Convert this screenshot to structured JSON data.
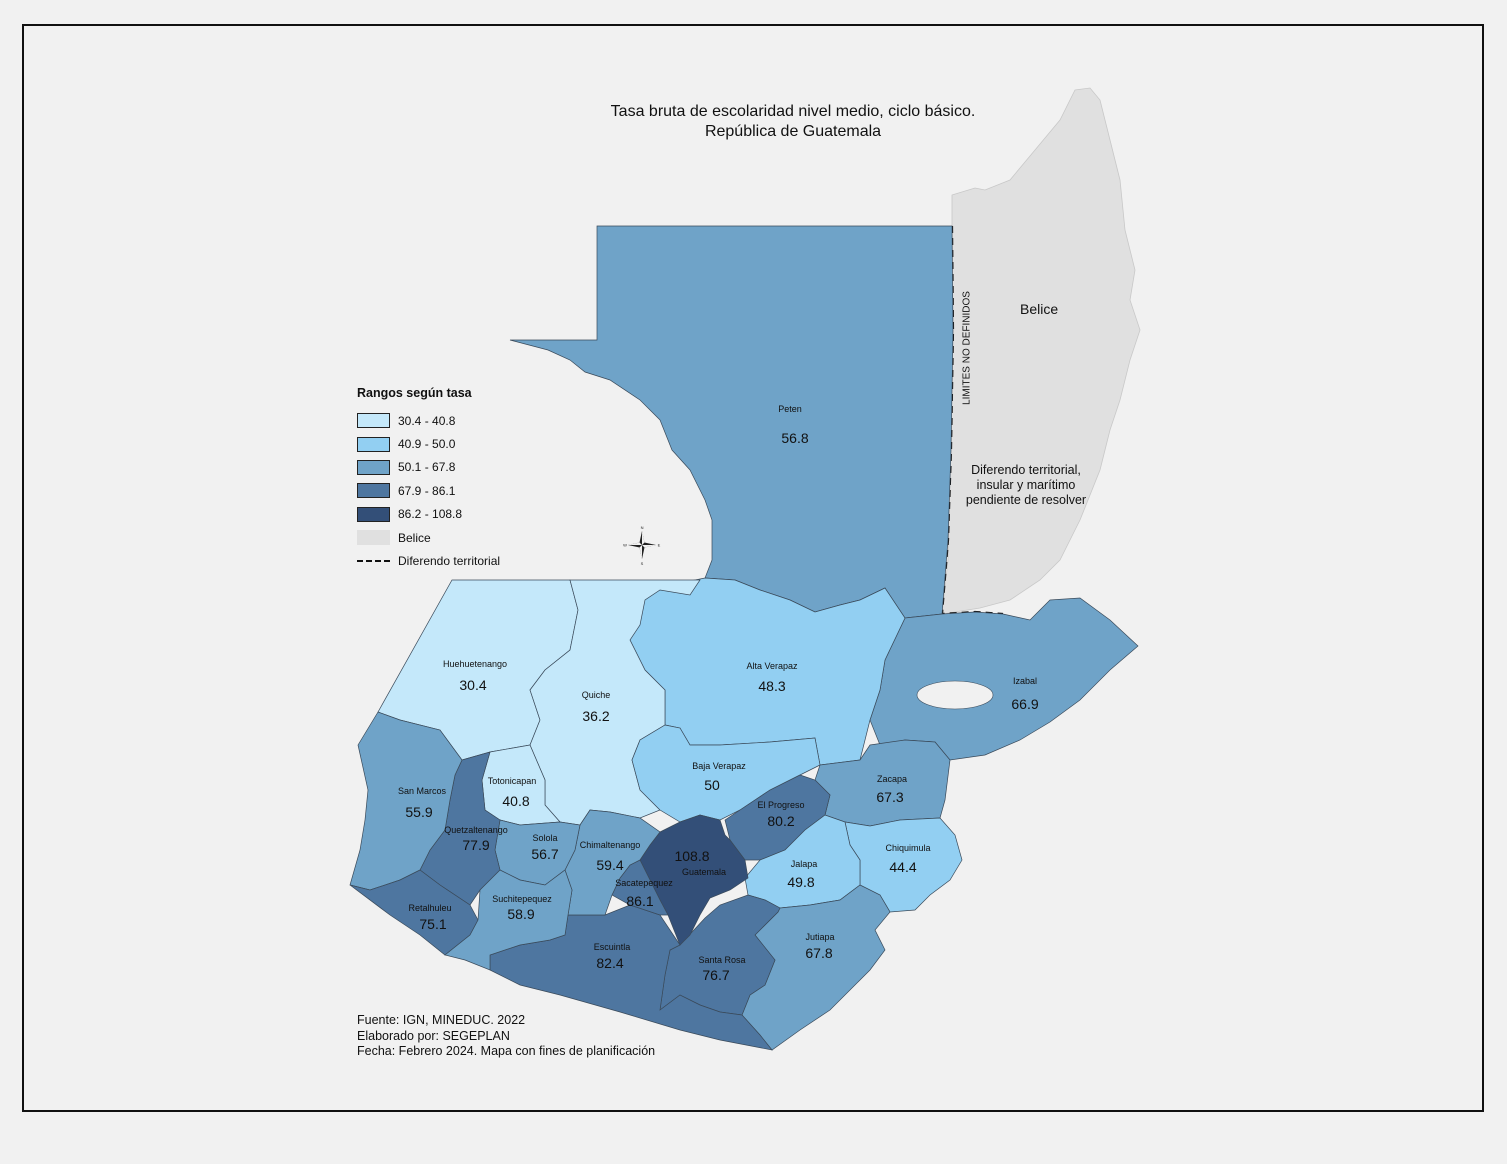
{
  "title": {
    "line1": "Tasa bruta de escolaridad nivel medio, ciclo básico.",
    "line2": "República de Guatemala"
  },
  "legend": {
    "title": "Rangos según tasa",
    "items": [
      {
        "label": "30.4 - 40.8",
        "color": "#c4e8fa"
      },
      {
        "label": "40.9 - 50.0",
        "color": "#92cff2"
      },
      {
        "label": "50.1 - 67.8",
        "color": "#6fa3c8"
      },
      {
        "label": "67.9 - 86.1",
        "color": "#4e76a0"
      },
      {
        "label": "86.2 - 108.8",
        "color": "#334f78"
      },
      {
        "label": "Belice",
        "color": "#e0e0e0"
      }
    ],
    "dispute_label": "Diferendo territorial"
  },
  "departments": [
    {
      "name": "Peten",
      "value": "56.8"
    },
    {
      "name": "Huehuetenango",
      "value": "30.4"
    },
    {
      "name": "Quiche",
      "value": "36.2"
    },
    {
      "name": "Alta Verapaz",
      "value": "48.3"
    },
    {
      "name": "Izabal",
      "value": "66.9"
    },
    {
      "name": "Baja Verapaz",
      "value": "50"
    },
    {
      "name": "Totonicapan",
      "value": "40.8"
    },
    {
      "name": "San Marcos",
      "value": "55.9"
    },
    {
      "name": "Quetzaltenango",
      "value": "77.9"
    },
    {
      "name": "Solola",
      "value": "56.7"
    },
    {
      "name": "Chimaltenango",
      "value": "59.4"
    },
    {
      "name": "Guatemala",
      "value": "108.8"
    },
    {
      "name": "El Progreso",
      "value": "80.2"
    },
    {
      "name": "Zacapa",
      "value": "67.3"
    },
    {
      "name": "Chiquimula",
      "value": "44.4"
    },
    {
      "name": "Jalapa",
      "value": "49.8"
    },
    {
      "name": "Sacatepequez",
      "value": "86.1"
    },
    {
      "name": "Suchitepequez",
      "value": "58.9"
    },
    {
      "name": "Retalhuleu",
      "value": "75.1"
    },
    {
      "name": "Escuintla",
      "value": "82.4"
    },
    {
      "name": "Santa Rosa",
      "value": "76.7"
    },
    {
      "name": "Jutiapa",
      "value": "67.8"
    }
  ],
  "belice": {
    "name": "Belice",
    "limits_label": "LIMITES NO DEFINIDOS",
    "dispute_line1": "Diferendo territorial,",
    "dispute_line2": "insular y marítimo",
    "dispute_line3": "pendiente de resolver"
  },
  "compass": {
    "n": "N",
    "s": "S",
    "e": "E",
    "w": "W"
  },
  "credits": {
    "source": "Fuente: IGN, MINEDUC. 2022",
    "author": "Elaborado por: SEGEPLAN",
    "date": "Fecha: Febrero 2024. Mapa con fines de planificación"
  }
}
